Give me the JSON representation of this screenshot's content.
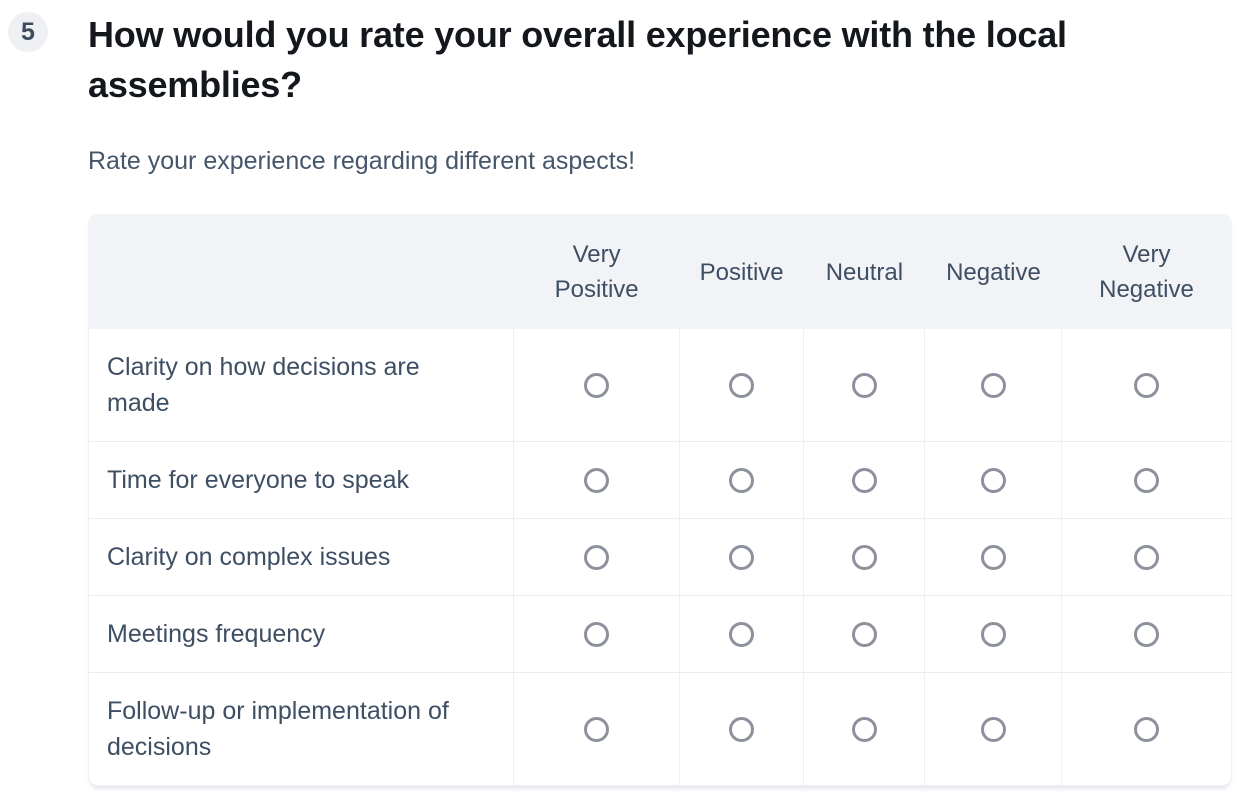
{
  "question": {
    "number": "5",
    "title": "How would you rate your overall experience with the local assemblies?",
    "subtitle": "Rate your experience regarding different aspects!"
  },
  "matrix": {
    "columns": [
      "Very Positive",
      "Positive",
      "Neutral",
      "Negative",
      "Very Negative"
    ],
    "rows": [
      "Clarity on how decisions are made",
      "Time for everyone to speak",
      "Clarity on complex issues",
      "Meetings frequency",
      "Follow-up or implementation of decisions"
    ],
    "radio_state": "all unselected"
  },
  "colors": {
    "header_background": "#f2f3f7",
    "badge_background": "#eef0f4",
    "title_text": "#14181d",
    "body_text": "#3e4e63",
    "radio_ring": "#8d919d",
    "grid_border": "#ecedf3"
  }
}
